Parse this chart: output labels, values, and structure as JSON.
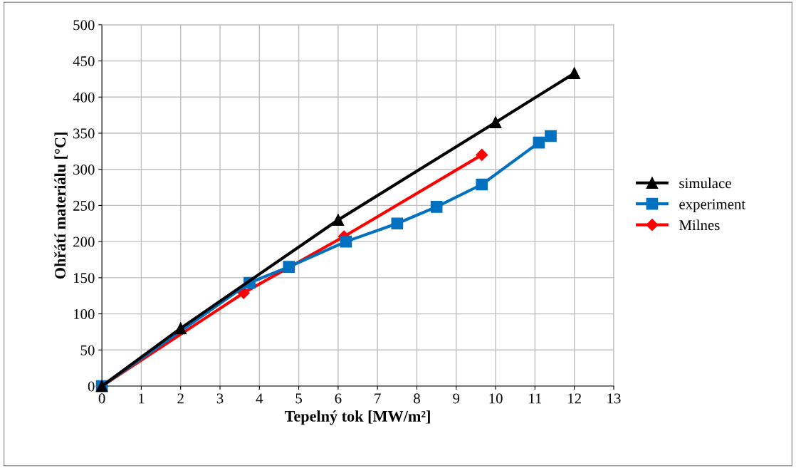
{
  "chart_data": {
    "type": "line",
    "xlabel": "Tepelný tok [MW/m²]",
    "ylabel": "Ohřátí materiálu [°C]",
    "xlim": [
      0,
      13
    ],
    "xticks": [
      0,
      1,
      2,
      3,
      4,
      5,
      6,
      7,
      8,
      9,
      10,
      11,
      12,
      13
    ],
    "ylim": [
      0,
      500
    ],
    "yticks": [
      0,
      50,
      100,
      150,
      200,
      250,
      300,
      350,
      400,
      450,
      500
    ],
    "grid": true,
    "legend": "right",
    "series": [
      {
        "name": "simulace",
        "color": "#000000",
        "marker": "triangle",
        "x": [
          0,
          2,
          6,
          10,
          12
        ],
        "values": [
          0,
          80,
          230,
          365,
          433
        ]
      },
      {
        "name": "experiment",
        "color": "#0070c0",
        "marker": "square",
        "x": [
          0,
          3.75,
          4.75,
          6.2,
          7.5,
          8.5,
          9.65,
          11.1,
          11.4
        ],
        "values": [
          0,
          143,
          165,
          200,
          225,
          248,
          279,
          337,
          346
        ]
      },
      {
        "name": "Milnes",
        "color": "#ff0000",
        "marker": "diamond",
        "x": [
          0,
          3.6,
          6.15,
          9.65
        ],
        "values": [
          0,
          129,
          207,
          320
        ]
      }
    ]
  }
}
